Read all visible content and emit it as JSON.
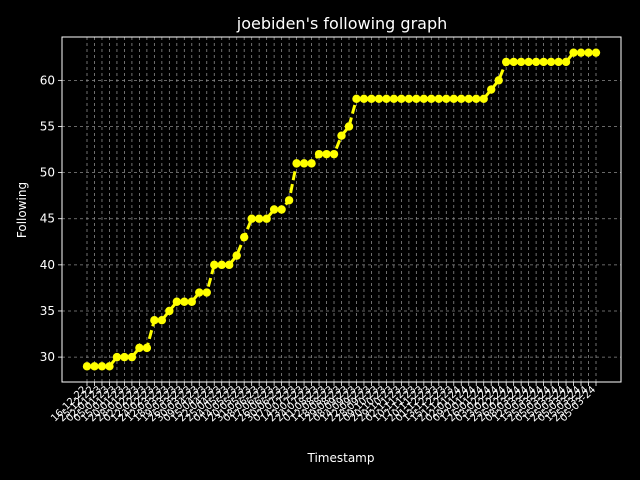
{
  "chart_data": {
    "type": "line",
    "title": "joebiden's following graph",
    "xlabel": "Timestamp",
    "ylabel": "Following",
    "ylim": [
      27.3,
      64.7
    ],
    "yticks": [
      30,
      35,
      40,
      45,
      50,
      55,
      60
    ],
    "grid": true,
    "legend": "none",
    "x": [
      "16-12-22",
      "25-12-22",
      "02-01-23",
      "05-01-23",
      "15-01-23",
      "20-01-23",
      "28-01-23",
      "02-02-23",
      "12-02-23",
      "24-02-23",
      "12-03-23",
      "18-03-23",
      "19-03-23",
      "26-03-23",
      "30-03-23",
      "09-04-23",
      "15-04-23",
      "22-04-23",
      "25-04-23",
      "04-05-23",
      "14-05-23",
      "20-05-23",
      "31-05-23",
      "08-06-23",
      "17-06-23",
      "26-06-23",
      "30-06-23",
      "07-07-23",
      "14-07-23",
      "23-07-23",
      "24-07-23",
      "01-08-23",
      "12-08-23",
      "18-08-23",
      "29-08-23",
      "08-09-23",
      "14-09-23",
      "22-09-23",
      "28-09-23",
      "09-10-23",
      "20-10-23",
      "29-10-23",
      "02-11-23",
      "10-11-23",
      "17-11-23",
      "20-11-23",
      "01-12-23",
      "13-12-23",
      "15-12-23",
      "21-12-23",
      "02-01-24",
      "09-01-24",
      "17-01-24",
      "26-01-24",
      "03-02-24",
      "13-02-24",
      "25-02-24",
      "26-02-24",
      "08-03-24",
      "12-03-24",
      "15-03-24",
      "25-03-24",
      "05-03-24",
      "15-03-24",
      "25-03-24",
      "05-03-24",
      "15-03-24",
      "25-03-24",
      "05-03-24"
    ],
    "series": [
      {
        "color": "#ffff00",
        "values": [
          29,
          29,
          29,
          29,
          30,
          30,
          30,
          31,
          31,
          34,
          34,
          35,
          36,
          36,
          36,
          37,
          37,
          40,
          40,
          40,
          41,
          43,
          45,
          45,
          45,
          46,
          46,
          47,
          51,
          51,
          51,
          52,
          52,
          52,
          54,
          55,
          58,
          58,
          58,
          58,
          58,
          58,
          58,
          58,
          58,
          58,
          58,
          58,
          58,
          58,
          58,
          58,
          58,
          58,
          59,
          60,
          62,
          62,
          62,
          62,
          62,
          62,
          62,
          62,
          62,
          63,
          63,
          63,
          63
        ]
      }
    ]
  }
}
